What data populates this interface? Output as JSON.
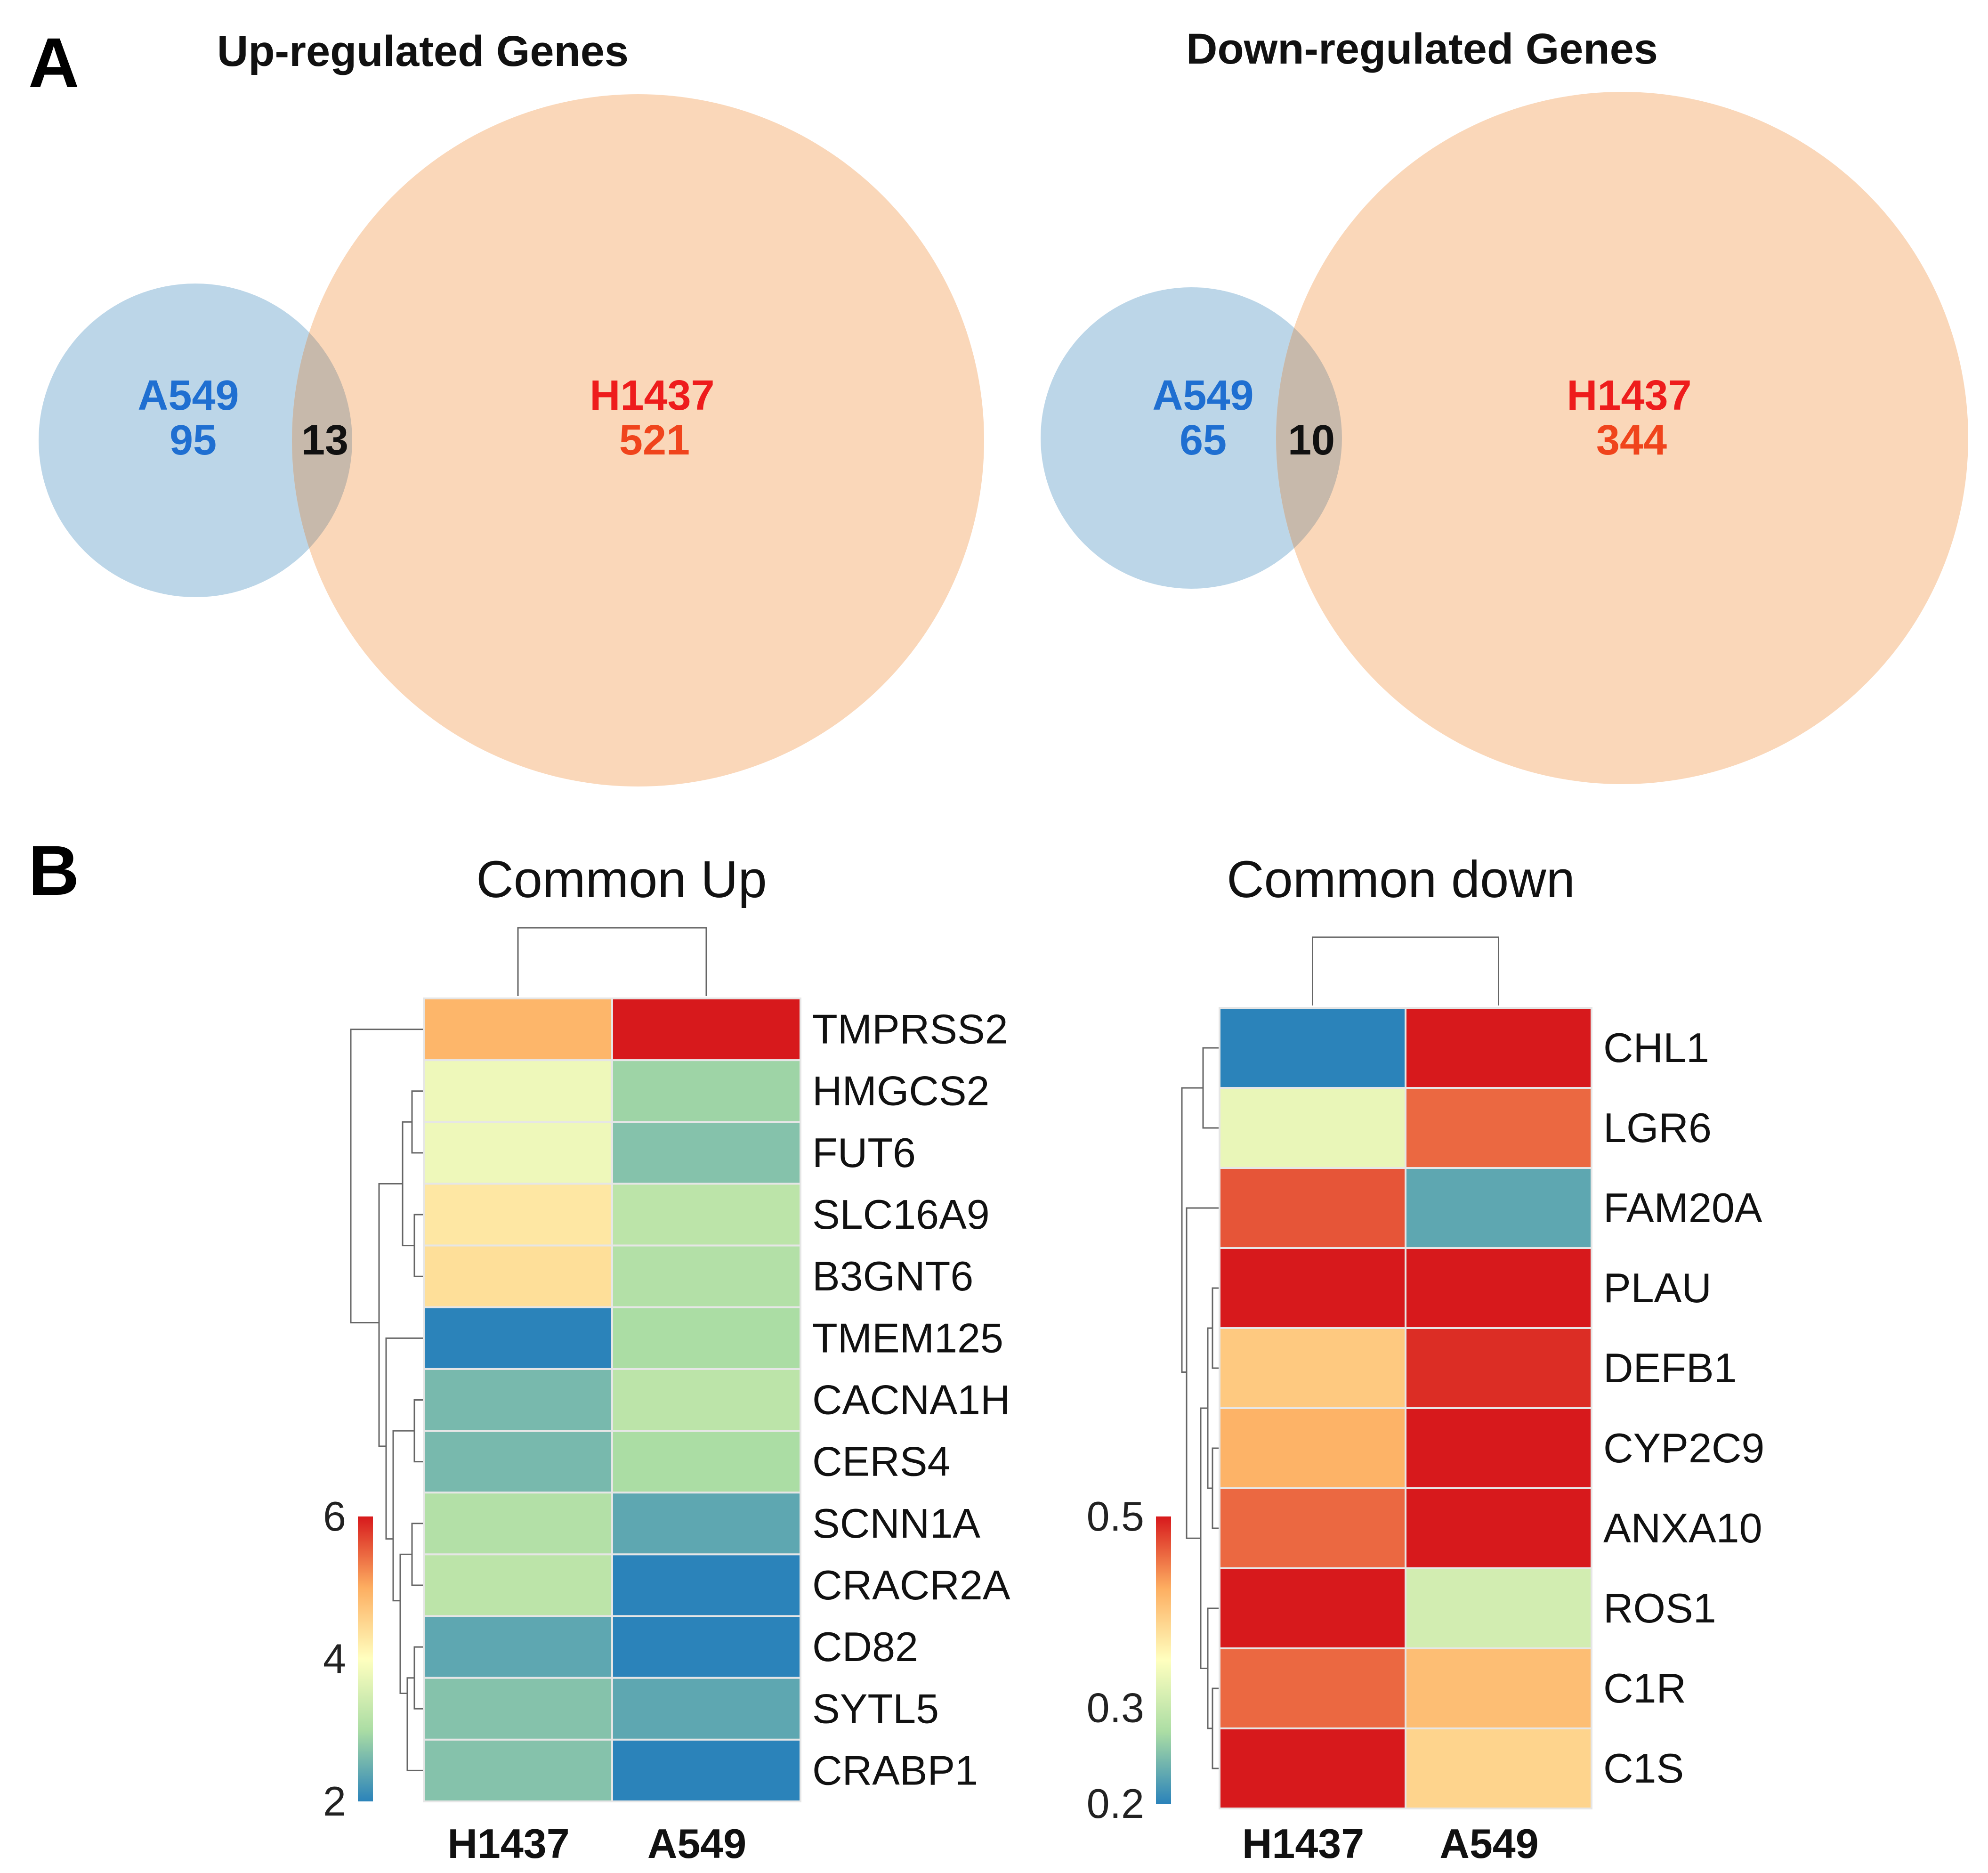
{
  "panel_labels": [
    "A",
    "B"
  ],
  "colors": {
    "a549_circle": "#bcd6e8",
    "h1437_circle": "#fad7b9",
    "overlap": "#c7b9ab",
    "a549_text": "#1f6fd1",
    "h1437_text": "#ee1c1c",
    "h1437_count_text": "#f0441c",
    "overlap_text": "#111111",
    "palette": [
      "#2b83ba",
      "#abdda4",
      "#ffffbf",
      "#fdae61",
      "#d7191c"
    ]
  },
  "chart_data": [
    {
      "type": "venn",
      "title": "Up-regulated Genes",
      "sets": [
        {
          "name": "A549",
          "unique": 95
        },
        {
          "name": "H1437",
          "unique": 521
        }
      ],
      "intersection": 13
    },
    {
      "type": "venn",
      "title": "Down-regulated Genes",
      "sets": [
        {
          "name": "A549",
          "unique": 65
        },
        {
          "name": "H1437",
          "unique": 344
        }
      ],
      "intersection": 10
    },
    {
      "type": "heatmap",
      "title": "Common Up",
      "columns": [
        "H1437",
        "A549"
      ],
      "rows": [
        "TMPRSS2",
        "HMGCS2",
        "FUT6",
        "SLC16A9",
        "B3GNT6",
        "TMEM125",
        "CACNA1H",
        "CERS4",
        "SCNN1A",
        "CRACR2A",
        "CD82",
        "SYTL5",
        "CRABP1"
      ],
      "values": [
        [
          4.9,
          6.2
        ],
        [
          3.8,
          2.9
        ],
        [
          3.8,
          2.7
        ],
        [
          4.3,
          3.2
        ],
        [
          4.4,
          3.1
        ],
        [
          1.9,
          3.0
        ],
        [
          2.6,
          3.2
        ],
        [
          2.6,
          3.0
        ],
        [
          3.1,
          2.4
        ],
        [
          3.2,
          1.9
        ],
        [
          2.4,
          1.9
        ],
        [
          2.7,
          2.4
        ],
        [
          2.7,
          2.0
        ]
      ],
      "colorbar": {
        "min": 2,
        "max": 6,
        "ticks": [
          2,
          4,
          6
        ]
      },
      "dendrogram": "clustered"
    },
    {
      "type": "heatmap",
      "title": "Common down",
      "columns": [
        "H1437",
        "A549"
      ],
      "rows": [
        "CHL1",
        "LGR6",
        "FAM20A",
        "PLAU",
        "DEFB1",
        "CYP2C9",
        "ANXA10",
        "ROS1",
        "C1R",
        "C1S"
      ],
      "values": [
        [
          0.17,
          0.51
        ],
        [
          0.33,
          0.46
        ],
        [
          0.47,
          0.23
        ],
        [
          0.54,
          0.51
        ],
        [
          0.4,
          0.49
        ],
        [
          0.42,
          0.55
        ],
        [
          0.46,
          0.52
        ],
        [
          0.52,
          0.31
        ],
        [
          0.46,
          0.41
        ],
        [
          0.53,
          0.39
        ]
      ],
      "colorbar": {
        "min": 0.2,
        "max": 0.5,
        "ticks": [
          0.2,
          0.3,
          0.5
        ]
      },
      "dendrogram": "clustered"
    }
  ]
}
